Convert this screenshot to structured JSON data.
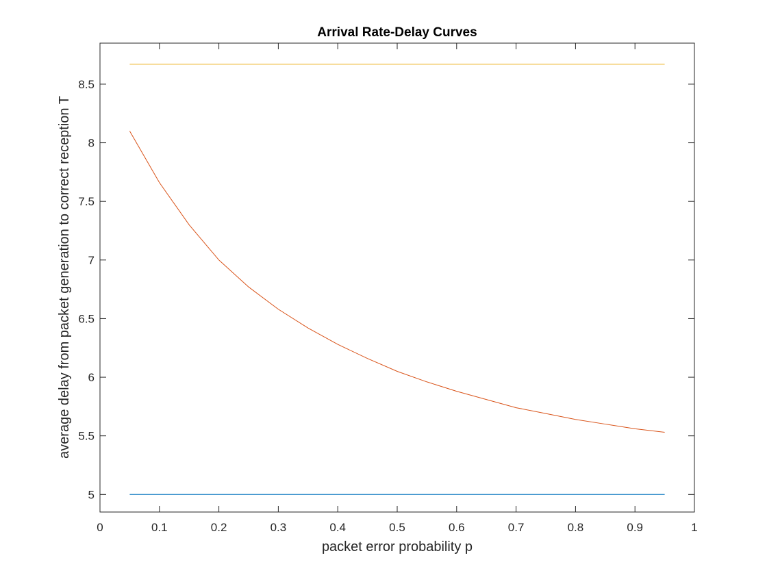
{
  "chart_data": {
    "type": "line",
    "title": "Arrival Rate-Delay Curves",
    "xlabel": "packet error probability p",
    "ylabel": "average delay from packet generation to correct reception T",
    "xlim": [
      0,
      1
    ],
    "ylim": [
      4.85,
      8.85
    ],
    "grid": false,
    "legend": "none",
    "x_ticks": [
      0,
      0.1,
      0.2,
      0.3,
      0.4,
      0.5,
      0.6,
      0.7,
      0.8,
      0.9,
      1
    ],
    "x_tick_labels": [
      "0",
      "0.1",
      "0.2",
      "0.3",
      "0.4",
      "0.5",
      "0.6",
      "0.7",
      "0.8",
      "0.9",
      "1"
    ],
    "y_ticks": [
      5,
      5.5,
      6,
      6.5,
      7,
      7.5,
      8,
      8.5
    ],
    "y_tick_labels": [
      "5",
      "5.5",
      "6",
      "6.5",
      "7",
      "7.5",
      "8",
      "8.5"
    ],
    "series": [
      {
        "color": "#0072BD",
        "x": [
          0.05,
          0.95
        ],
        "y": [
          5.0,
          5.0
        ]
      },
      {
        "color": "#D95319",
        "x": [
          0.05,
          0.1,
          0.15,
          0.2,
          0.25,
          0.3,
          0.35,
          0.4,
          0.45,
          0.5,
          0.55,
          0.6,
          0.65,
          0.7,
          0.75,
          0.8,
          0.85,
          0.9,
          0.95
        ],
        "y": [
          8.1,
          7.66,
          7.3,
          7.0,
          6.77,
          6.58,
          6.42,
          6.28,
          6.16,
          6.05,
          5.96,
          5.88,
          5.81,
          5.74,
          5.69,
          5.64,
          5.6,
          5.56,
          5.53
        ]
      },
      {
        "color": "#EDB120",
        "x": [
          0.05,
          0.95
        ],
        "y": [
          8.67,
          8.67
        ]
      }
    ]
  }
}
